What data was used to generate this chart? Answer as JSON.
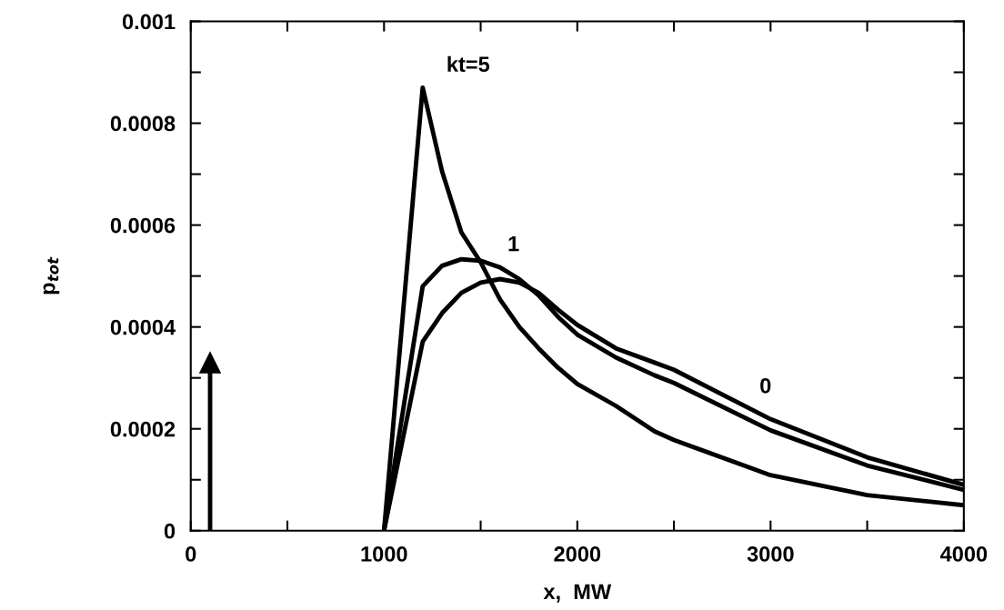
{
  "chart_data": {
    "type": "line",
    "xlabel": "x,  MW",
    "ylabel": "p$_{tot}$",
    "xlim": [
      0,
      4000
    ],
    "ylim": [
      0,
      0.001
    ],
    "xticks": [
      0,
      {
        "value": 500,
        "label": null
      },
      1000,
      {
        "value": 1500,
        "label": null
      },
      2000,
      {
        "value": 2500,
        "label": null
      },
      3000,
      {
        "value": 3500,
        "label": null
      },
      4000
    ],
    "yticks": [
      0,
      {
        "value": 0.0001,
        "label": null
      },
      0.0002,
      {
        "value": 0.0003,
        "label": null
      },
      0.0004,
      {
        "value": 0.0005,
        "label": null
      },
      0.0006,
      {
        "value": 0.0007,
        "label": null
      },
      0.0008,
      {
        "value": 0.0009,
        "label": null
      },
      0.001
    ],
    "grid": false,
    "marker": "none",
    "line_style": "solid",
    "series": [
      {
        "color": "#000000",
        "marker": "triangle",
        "x": [
          100,
          100
        ],
        "values": [
          0,
          0.00033
        ]
      },
      {
        "color": "#000000",
        "x": [
          1000,
          1200,
          1300,
          1400,
          1500,
          1600,
          1700,
          1800,
          1900,
          2000,
          2200,
          2400,
          2500,
          3000,
          3500,
          4000
        ],
        "values": [
          0,
          0.00087,
          0.000706,
          0.000586,
          0.000527,
          0.000454,
          0.0004,
          0.000358,
          0.00032,
          0.000288,
          0.000245,
          0.000195,
          0.000178,
          0.000109,
          7e-05,
          5e-05
        ],
        "name": "kt=5"
      },
      {
        "color": "#000000",
        "x": [
          1000,
          1200,
          1300,
          1400,
          1500,
          1600,
          1700,
          1800,
          1900,
          2000,
          2200,
          2400,
          2500,
          3000,
          3500,
          4000
        ],
        "values": [
          0,
          0.00048,
          0.00052,
          0.000533,
          0.00053,
          0.000517,
          0.000494,
          0.000462,
          0.00042,
          0.000385,
          0.00034,
          0.000305,
          0.00029,
          0.000197,
          0.000128,
          8e-05
        ],
        "name": "1"
      },
      {
        "color": "#000000",
        "x": [
          1000,
          1200,
          1300,
          1400,
          1500,
          1600,
          1700,
          1800,
          1900,
          2000,
          2200,
          2400,
          2500,
          3000,
          3500,
          4000
        ],
        "values": [
          0,
          0.000371,
          0.000427,
          0.000467,
          0.000487,
          0.000494,
          0.000487,
          0.000467,
          0.000434,
          0.000404,
          0.000358,
          0.00033,
          0.000316,
          0.000219,
          0.000144,
          9e-05
        ],
        "name": "0"
      }
    ]
  }
}
